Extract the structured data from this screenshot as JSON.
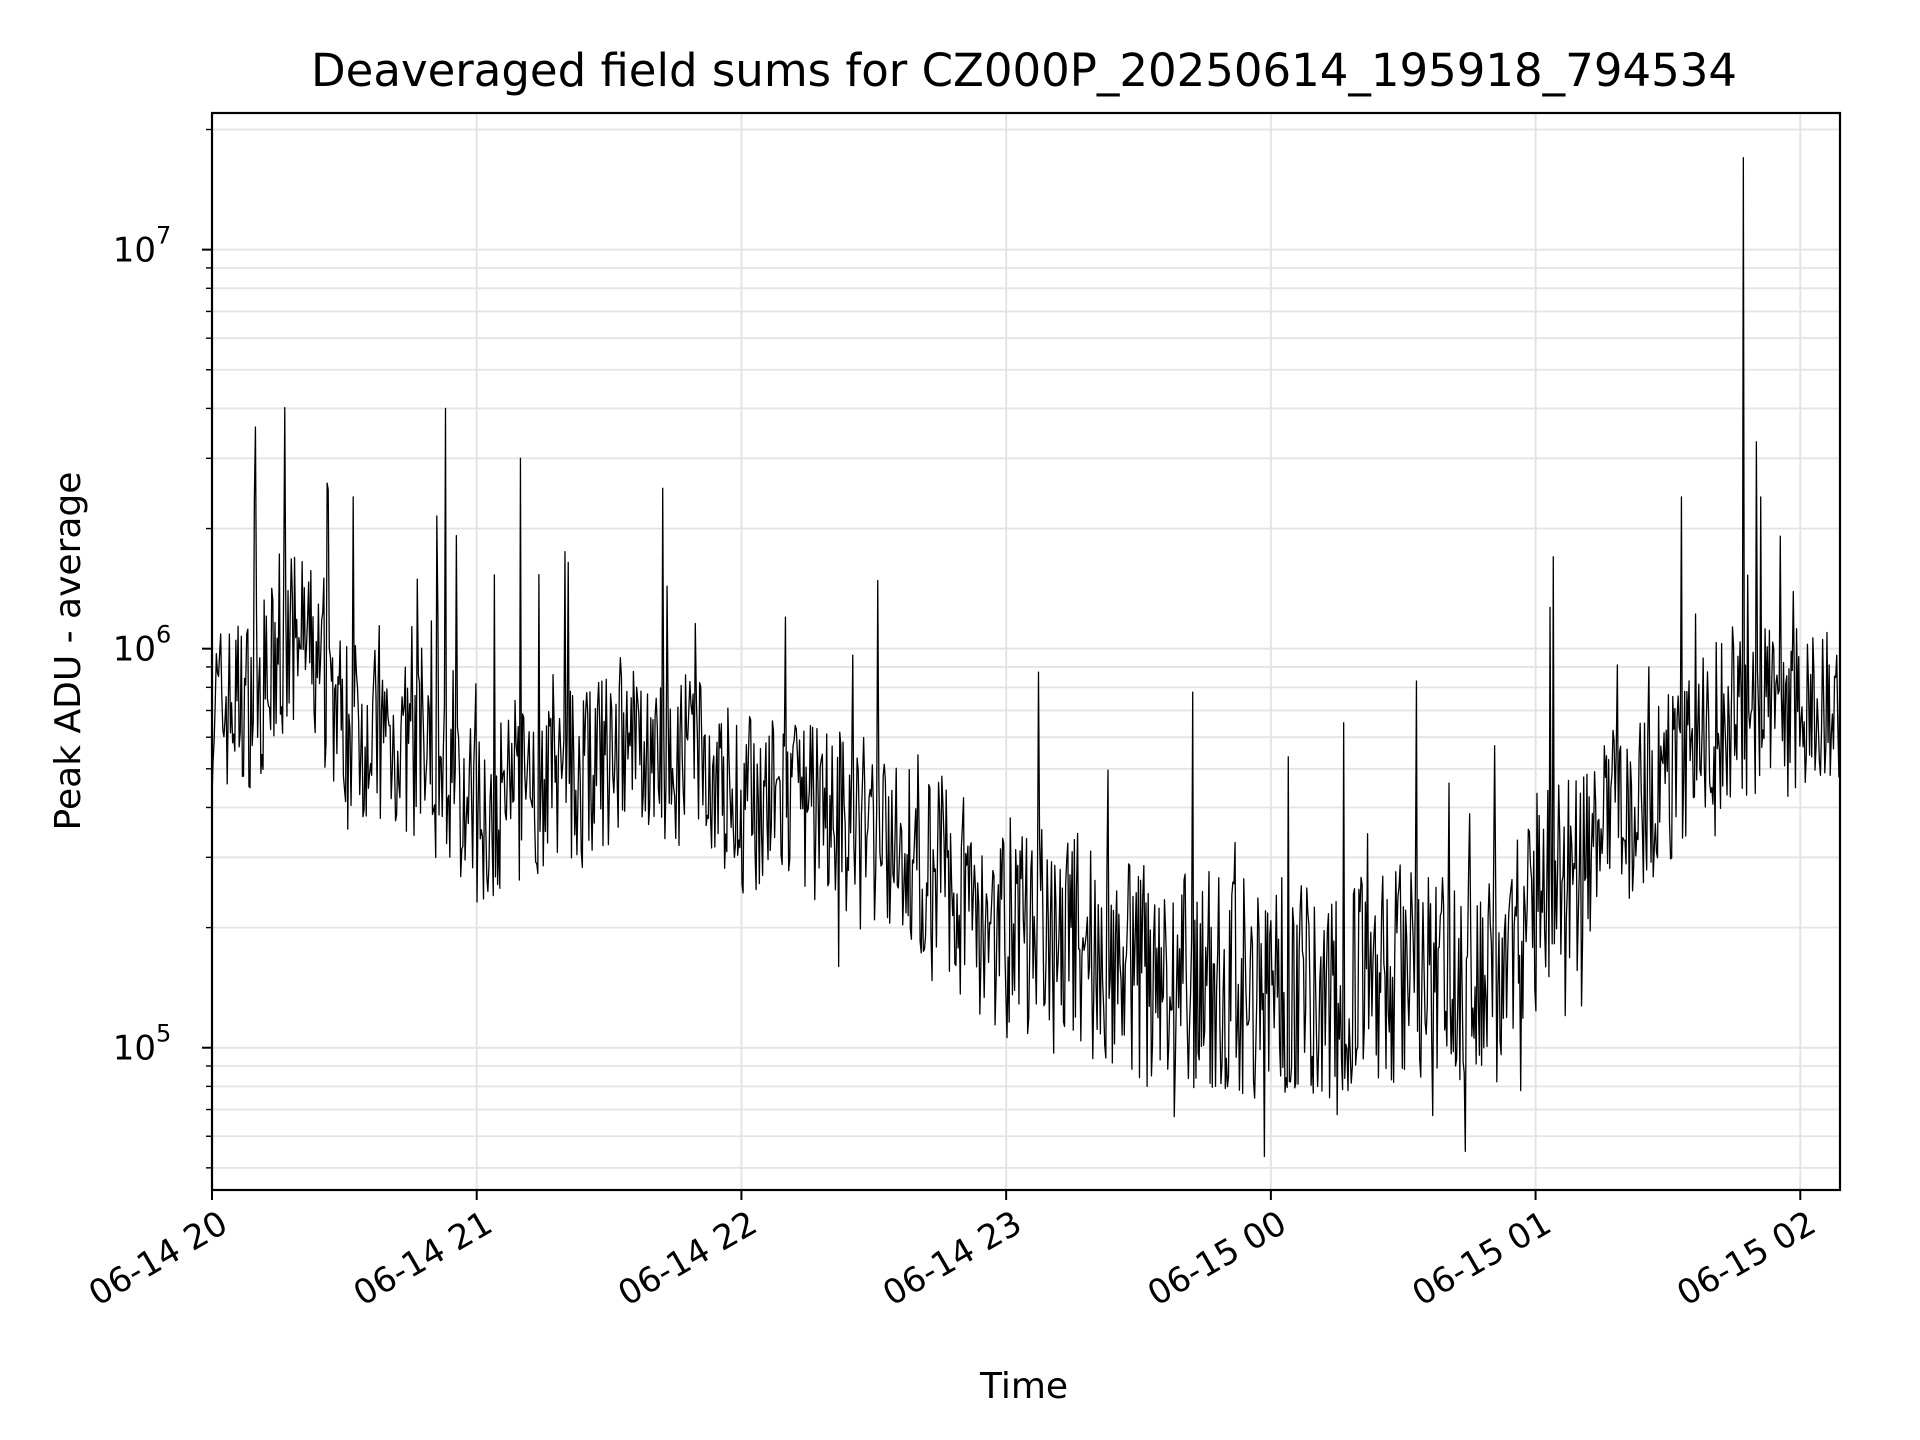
{
  "chart_data": {
    "type": "line",
    "title": "Deaveraged field sums for CZ000P_20250614_195918_794534",
    "xlabel": "Time",
    "ylabel": "Peak ADU - average",
    "yscale": "log",
    "grid": true,
    "xlim": [
      "2025-06-14T20:00",
      "2025-06-15T02:09"
    ],
    "ylim": [
      44000,
      22000000
    ],
    "x_ticks": [
      {
        "value": "2025-06-14T20:00",
        "label": "06-14 20"
      },
      {
        "value": "2025-06-14T21:00",
        "label": "06-14 21"
      },
      {
        "value": "2025-06-14T22:00",
        "label": "06-14 22"
      },
      {
        "value": "2025-06-14T23:00",
        "label": "06-14 23"
      },
      {
        "value": "2025-06-15T00:00",
        "label": "06-15 00"
      },
      {
        "value": "2025-06-15T01:00",
        "label": "06-15 01"
      },
      {
        "value": "2025-06-15T02:00",
        "label": "06-15 02"
      }
    ],
    "y_ticks": [
      {
        "value": 100000,
        "base": "10",
        "exp": "5"
      },
      {
        "value": 1000000,
        "base": "10",
        "exp": "6"
      },
      {
        "value": 10000000,
        "base": "10",
        "exp": "7"
      }
    ],
    "series": [
      {
        "color": "#000000",
        "points": [
          [
            "2025-06-14T20:00",
            700000
          ],
          [
            "2025-06-14T20:10",
            750000
          ],
          [
            "2025-06-14T20:20",
            1100000
          ],
          [
            "2025-06-14T20:30",
            650000
          ],
          [
            "2025-06-14T20:40",
            600000
          ],
          [
            "2025-06-14T20:50",
            500000
          ],
          [
            "2025-06-14T21:00",
            380000
          ],
          [
            "2025-06-14T21:15",
            450000
          ],
          [
            "2025-06-14T21:30",
            520000
          ],
          [
            "2025-06-14T21:45",
            560000
          ],
          [
            "2025-06-14T22:00",
            420000
          ],
          [
            "2025-06-14T22:20",
            380000
          ],
          [
            "2025-06-14T22:40",
            300000
          ],
          [
            "2025-06-14T23:00",
            200000
          ],
          [
            "2025-06-14T23:20",
            170000
          ],
          [
            "2025-06-14T23:40",
            150000
          ],
          [
            "2025-06-15T00:00",
            140000
          ],
          [
            "2025-06-15T00:20",
            150000
          ],
          [
            "2025-06-15T00:40",
            160000
          ],
          [
            "2025-06-15T00:50",
            140000
          ],
          [
            "2025-06-15T01:00",
            230000
          ],
          [
            "2025-06-15T01:15",
            340000
          ],
          [
            "2025-06-15T01:30",
            480000
          ],
          [
            "2025-06-15T01:45",
            700000
          ],
          [
            "2025-06-15T02:00",
            650000
          ],
          [
            "2025-06-15T02:09",
            720000
          ]
        ],
        "spikes": [
          [
            "2025-06-14T20:26",
            2600000
          ],
          [
            "2025-06-14T20:32",
            2400000
          ],
          [
            "2025-06-14T20:51",
            2150000
          ],
          [
            "2025-06-14T20:53",
            4000000
          ],
          [
            "2025-06-14T21:10",
            3000000
          ],
          [
            "2025-06-14T21:20",
            1750000
          ],
          [
            "2025-06-14T22:10",
            1200000
          ],
          [
            "2025-06-15T01:04",
            1700000
          ],
          [
            "2025-06-15T01:33",
            2400000
          ],
          [
            "2025-06-15T01:47",
            17000000
          ],
          [
            "2025-06-15T01:50",
            3300000
          ],
          [
            "2025-06-15T01:51",
            2400000
          ],
          [
            "2025-06-15T00:44",
            55000
          ],
          [
            "2025-06-15T00:15",
            68000
          ],
          [
            "2025-06-14T23:32",
            80000
          ]
        ]
      }
    ]
  }
}
